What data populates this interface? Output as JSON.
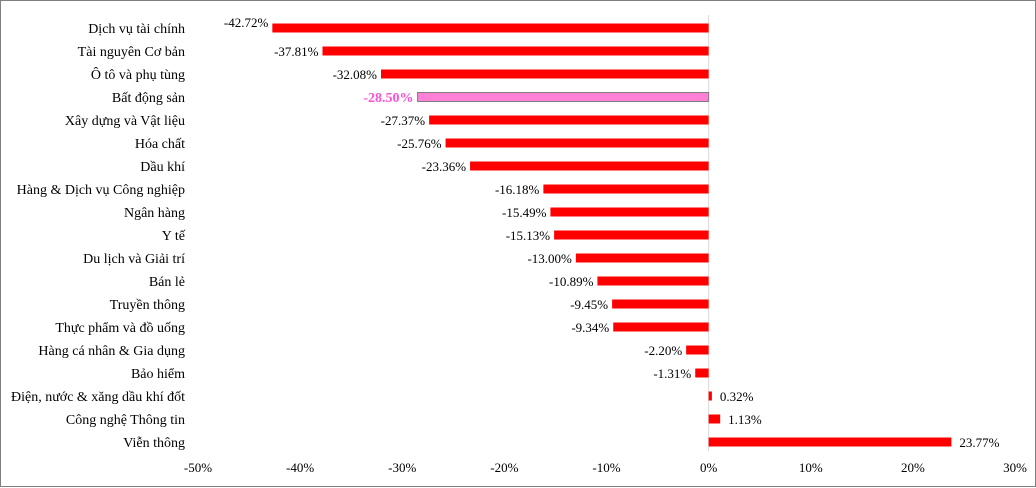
{
  "chart_data": {
    "type": "bar",
    "orientation": "horizontal",
    "title": "",
    "xlabel": "",
    "ylabel": "",
    "xlim": [
      -50,
      30
    ],
    "ticks": [
      -50,
      -40,
      -30,
      -20,
      -10,
      0,
      10,
      20,
      30
    ],
    "tick_labels": [
      "-50%",
      "-40%",
      "-30%",
      "-20%",
      "-10%",
      "0%",
      "10%",
      "20%",
      "30%"
    ],
    "grid": false,
    "legend": "none",
    "colors": {
      "bar": "#ff0000",
      "highlight": "#ff80d6",
      "highlight_label": "#ff4fd8",
      "highlight_border": "#7f7f7f",
      "axis": "#d9d9d9"
    },
    "categories": [
      "Dịch vụ tài chính",
      "Tài nguyên Cơ bản",
      "Ô tô và phụ tùng",
      "Bất động sản",
      "Xây dựng và Vật liệu",
      "Hóa chất",
      "Dầu khí",
      "Hàng & Dịch vụ Công nghiệp",
      "Ngân hàng",
      "Y tế",
      "Du lịch và Giải trí",
      "Bán lẻ",
      "Truyền thông",
      "Thực phẩm và đồ uống",
      "Hàng cá nhân & Gia dụng",
      "Bảo hiểm",
      "Điện, nước & xăng dầu khí đốt",
      "Công nghệ Thông tin",
      "Viễn thông"
    ],
    "values": [
      -42.72,
      -37.81,
      -32.08,
      -28.5,
      -27.37,
      -25.76,
      -23.36,
      -16.18,
      -15.49,
      -15.13,
      -13.0,
      -10.89,
      -9.45,
      -9.34,
      -2.2,
      -1.31,
      0.32,
      1.13,
      23.77
    ],
    "value_labels": [
      "-42.72%",
      "-37.81%",
      "-32.08%",
      "-28.50%",
      "-27.37%",
      "-25.76%",
      "-23.36%",
      "-16.18%",
      "-15.49%",
      "-15.13%",
      "-13.00%",
      "-10.89%",
      "-9.45%",
      "-9.34%",
      "-2.20%",
      "-1.31%",
      "0.32%",
      "1.13%",
      "23.77%"
    ],
    "highlight_index": 3
  }
}
